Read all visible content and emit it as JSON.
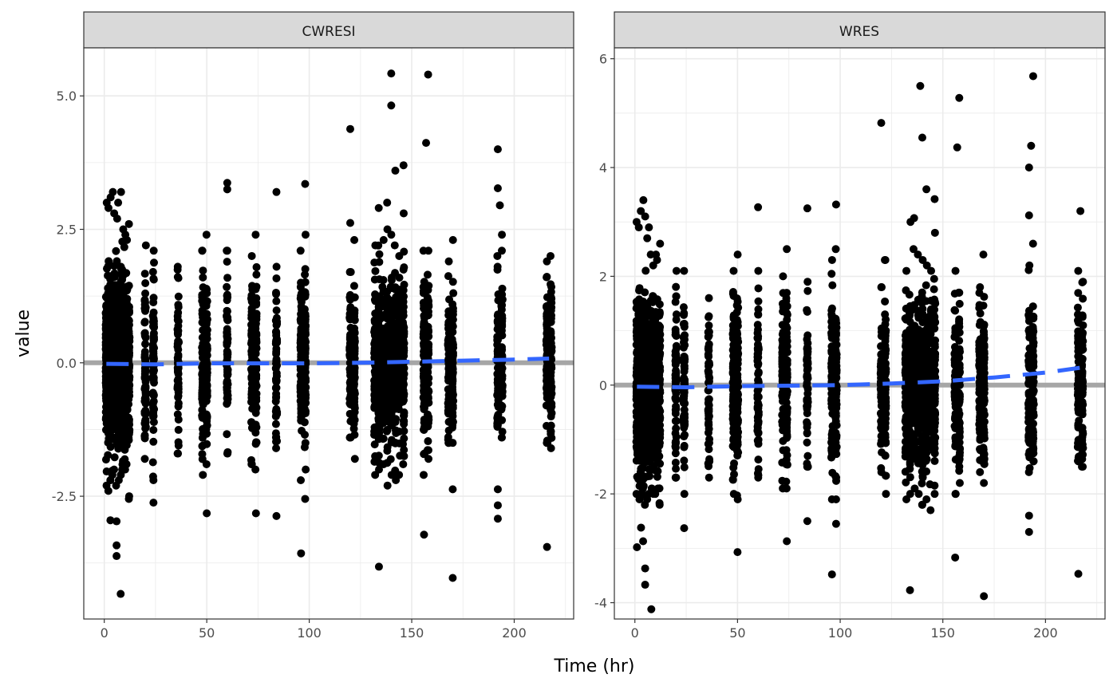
{
  "figure": {
    "xlabel": "Time (hr)",
    "ylabel": "value"
  },
  "colors": {
    "point": "#000000",
    "smooth": "#3366ff",
    "reference": "#a6a6a6",
    "strip": "#d9d9d9",
    "grid": "#ebebeb"
  },
  "chart_data": [
    {
      "type": "scatter",
      "panel": "CWRESI",
      "xlabel": "Time (hr)",
      "ylabel": "value",
      "xlim": [
        -10,
        229
      ],
      "ylim": [
        -4.8,
        5.9
      ],
      "x_ticks": [
        0,
        50,
        100,
        150,
        200
      ],
      "y_ticks": [
        -2.5,
        0.0,
        2.5,
        5.0
      ],
      "y_tick_labels": [
        "-2.5",
        "0.0",
        "2.5",
        "5.0"
      ],
      "grid": true,
      "reference_line": 0,
      "time_columns": [
        {
          "x": 1,
          "lo": -2.3,
          "hi": 3.0
        },
        {
          "x": 2,
          "lo": -2.4,
          "hi": 2.9
        },
        {
          "x": 3,
          "lo": -2.2,
          "hi": 3.1
        },
        {
          "x": 4,
          "lo": -2.1,
          "hi": 3.2
        },
        {
          "x": 5,
          "lo": -2.0,
          "hi": 2.8
        },
        {
          "x": 6,
          "lo": -2.3,
          "hi": 2.7
        },
        {
          "x": 7,
          "lo": -2.2,
          "hi": 3.0
        },
        {
          "x": 8,
          "lo": -2.1,
          "hi": 3.2
        },
        {
          "x": 9,
          "lo": -2.0,
          "hi": 2.5
        },
        {
          "x": 10,
          "lo": -2.0,
          "hi": 2.4
        },
        {
          "x": 11,
          "lo": -1.9,
          "hi": 2.3
        },
        {
          "x": 12,
          "lo": -2.5,
          "hi": 2.6
        },
        {
          "x": 20,
          "lo": -1.8,
          "hi": 2.2
        },
        {
          "x": 24,
          "lo": -2.2,
          "hi": 2.1
        },
        {
          "x": 36,
          "lo": -1.7,
          "hi": 1.8
        },
        {
          "x": 48,
          "lo": -2.1,
          "hi": 2.1
        },
        {
          "x": 50,
          "lo": -1.9,
          "hi": 2.4
        },
        {
          "x": 60,
          "lo": -1.7,
          "hi": 2.1
        },
        {
          "x": 72,
          "lo": -1.9,
          "hi": 2.0
        },
        {
          "x": 74,
          "lo": -2.0,
          "hi": 2.4
        },
        {
          "x": 84,
          "lo": -1.6,
          "hi": 1.8
        },
        {
          "x": 96,
          "lo": -2.2,
          "hi": 2.1
        },
        {
          "x": 98,
          "lo": -2.0,
          "hi": 2.4
        },
        {
          "x": 120,
          "lo": -1.4,
          "hi": 1.7
        },
        {
          "x": 122,
          "lo": -1.8,
          "hi": 2.3
        },
        {
          "x": 132,
          "lo": -2.1,
          "hi": 2.2
        },
        {
          "x": 134,
          "lo": -2.0,
          "hi": 2.9
        },
        {
          "x": 136,
          "lo": -1.9,
          "hi": 2.3
        },
        {
          "x": 138,
          "lo": -2.3,
          "hi": 2.5
        },
        {
          "x": 140,
          "lo": -2.1,
          "hi": 2.4
        },
        {
          "x": 142,
          "lo": -2.2,
          "hi": 2.2
        },
        {
          "x": 144,
          "lo": -2.1,
          "hi": 2.0
        },
        {
          "x": 146,
          "lo": -1.9,
          "hi": 2.8
        },
        {
          "x": 156,
          "lo": -2.1,
          "hi": 2.1
        },
        {
          "x": 158,
          "lo": -1.8,
          "hi": 2.1
        },
        {
          "x": 168,
          "lo": -1.5,
          "hi": 1.9
        },
        {
          "x": 170,
          "lo": -1.5,
          "hi": 2.3
        },
        {
          "x": 192,
          "lo": -1.2,
          "hi": 2.0
        },
        {
          "x": 194,
          "lo": -1.4,
          "hi": 2.1
        },
        {
          "x": 216,
          "lo": -1.5,
          "hi": 1.9
        },
        {
          "x": 218,
          "lo": -1.6,
          "hi": 2.0
        }
      ],
      "outliers": [
        [
          3,
          -2.95
        ],
        [
          6,
          -2.97
        ],
        [
          6,
          -3.42
        ],
        [
          6,
          -3.62
        ],
        [
          8,
          -4.33
        ],
        [
          12,
          -2.55
        ],
        [
          24,
          -2.62
        ],
        [
          50,
          -2.82
        ],
        [
          60,
          3.37
        ],
        [
          60,
          3.25
        ],
        [
          74,
          -2.82
        ],
        [
          84,
          3.2
        ],
        [
          84,
          -2.87
        ],
        [
          96,
          -3.57
        ],
        [
          98,
          3.35
        ],
        [
          98,
          -2.55
        ],
        [
          120,
          4.38
        ],
        [
          120,
          2.62
        ],
        [
          134,
          -3.82
        ],
        [
          138,
          3.0
        ],
        [
          140,
          5.42
        ],
        [
          140,
          4.82
        ],
        [
          142,
          3.6
        ],
        [
          146,
          3.7
        ],
        [
          156,
          -3.22
        ],
        [
          157,
          4.12
        ],
        [
          158,
          5.4
        ],
        [
          170,
          -2.37
        ],
        [
          170,
          -4.03
        ],
        [
          192,
          4.0
        ],
        [
          192,
          3.27
        ],
        [
          193,
          2.95
        ],
        [
          194,
          2.4
        ],
        [
          192,
          -2.67
        ],
        [
          192,
          -2.92
        ],
        [
          192,
          -2.37
        ],
        [
          216,
          -3.45
        ]
      ],
      "smooth": {
        "name": "",
        "x": [
          1,
          25,
          50,
          75,
          100,
          125,
          150,
          175,
          200,
          217
        ],
        "y": [
          -0.02,
          -0.03,
          -0.01,
          -0.01,
          -0.01,
          0.0,
          0.02,
          0.04,
          0.06,
          0.08
        ]
      }
    },
    {
      "type": "scatter",
      "panel": "WRES",
      "xlabel": "Time (hr)",
      "ylabel": "value",
      "xlim": [
        -10,
        229
      ],
      "ylim": [
        -4.3,
        6.2
      ],
      "x_ticks": [
        0,
        50,
        100,
        150,
        200
      ],
      "y_ticks": [
        -4,
        -2,
        0,
        2,
        4,
        6
      ],
      "y_tick_labels": [
        "-4",
        "-2",
        "0",
        "2",
        "4",
        "6"
      ],
      "grid": true,
      "reference_line": 0,
      "time_columns": [
        {
          "x": 1,
          "lo": -2.0,
          "hi": 3.0
        },
        {
          "x": 2,
          "lo": -2.1,
          "hi": 2.9
        },
        {
          "x": 3,
          "lo": -2.0,
          "hi": 3.2
        },
        {
          "x": 4,
          "lo": -1.9,
          "hi": 3.4
        },
        {
          "x": 5,
          "lo": -2.2,
          "hi": 3.1
        },
        {
          "x": 6,
          "lo": -2.1,
          "hi": 2.7
        },
        {
          "x": 7,
          "lo": -2.0,
          "hi": 2.9
        },
        {
          "x": 8,
          "lo": -1.9,
          "hi": 2.4
        },
        {
          "x": 9,
          "lo": -2.0,
          "hi": 2.2
        },
        {
          "x": 10,
          "lo": -2.0,
          "hi": 2.4
        },
        {
          "x": 11,
          "lo": -1.9,
          "hi": 2.3
        },
        {
          "x": 12,
          "lo": -2.2,
          "hi": 2.6
        },
        {
          "x": 20,
          "lo": -1.7,
          "hi": 2.1
        },
        {
          "x": 24,
          "lo": -2.0,
          "hi": 2.1
        },
        {
          "x": 36,
          "lo": -1.7,
          "hi": 1.6
        },
        {
          "x": 48,
          "lo": -2.0,
          "hi": 2.1
        },
        {
          "x": 50,
          "lo": -2.1,
          "hi": 2.4
        },
        {
          "x": 60,
          "lo": -1.7,
          "hi": 2.1
        },
        {
          "x": 72,
          "lo": -1.9,
          "hi": 2.0
        },
        {
          "x": 74,
          "lo": -1.9,
          "hi": 2.5
        },
        {
          "x": 84,
          "lo": -1.5,
          "hi": 1.9
        },
        {
          "x": 96,
          "lo": -2.1,
          "hi": 2.3
        },
        {
          "x": 98,
          "lo": -2.1,
          "hi": 2.5
        },
        {
          "x": 120,
          "lo": -1.6,
          "hi": 1.8
        },
        {
          "x": 122,
          "lo": -2.0,
          "hi": 2.3
        },
        {
          "x": 132,
          "lo": -2.1,
          "hi": 2.1
        },
        {
          "x": 134,
          "lo": -2.0,
          "hi": 3.0
        },
        {
          "x": 136,
          "lo": -1.9,
          "hi": 2.5
        },
        {
          "x": 138,
          "lo": -2.0,
          "hi": 2.4
        },
        {
          "x": 140,
          "lo": -2.2,
          "hi": 2.3
        },
        {
          "x": 142,
          "lo": -2.1,
          "hi": 2.2
        },
        {
          "x": 144,
          "lo": -2.3,
          "hi": 2.1
        },
        {
          "x": 146,
          "lo": -2.0,
          "hi": 2.8
        },
        {
          "x": 156,
          "lo": -2.0,
          "hi": 2.1
        },
        {
          "x": 158,
          "lo": -1.8,
          "hi": 1.7
        },
        {
          "x": 168,
          "lo": -1.6,
          "hi": 1.8
        },
        {
          "x": 170,
          "lo": -1.8,
          "hi": 2.4
        },
        {
          "x": 192,
          "lo": -1.6,
          "hi": 2.2
        },
        {
          "x": 194,
          "lo": -1.4,
          "hi": 2.6
        },
        {
          "x": 216,
          "lo": -1.4,
          "hi": 2.1
        },
        {
          "x": 218,
          "lo": -1.5,
          "hi": 1.9
        }
      ],
      "outliers": [
        [
          1,
          -2.98
        ],
        [
          3,
          -2.62
        ],
        [
          4,
          -2.87
        ],
        [
          5,
          -3.37
        ],
        [
          5,
          -3.67
        ],
        [
          8,
          -4.12
        ],
        [
          12,
          -2.17
        ],
        [
          24,
          -2.63
        ],
        [
          50,
          -3.07
        ],
        [
          60,
          3.27
        ],
        [
          74,
          -2.87
        ],
        [
          84,
          3.25
        ],
        [
          84,
          -2.5
        ],
        [
          96,
          -3.48
        ],
        [
          98,
          3.32
        ],
        [
          98,
          -2.55
        ],
        [
          120,
          4.82
        ],
        [
          122,
          2.3
        ],
        [
          134,
          -3.77
        ],
        [
          136,
          3.07
        ],
        [
          139,
          5.5
        ],
        [
          140,
          4.55
        ],
        [
          142,
          3.6
        ],
        [
          146,
          3.42
        ],
        [
          156,
          -3.17
        ],
        [
          157,
          4.37
        ],
        [
          158,
          5.28
        ],
        [
          170,
          -3.88
        ],
        [
          192,
          4.0
        ],
        [
          193,
          4.4
        ],
        [
          194,
          5.68
        ],
        [
          192,
          3.12
        ],
        [
          192,
          -2.4
        ],
        [
          192,
          -2.7
        ],
        [
          216,
          -3.47
        ],
        [
          217,
          3.2
        ]
      ],
      "smooth": {
        "name": "",
        "x": [
          1,
          25,
          50,
          75,
          100,
          125,
          150,
          175,
          200,
          217
        ],
        "y": [
          -0.03,
          -0.04,
          -0.02,
          -0.01,
          0.0,
          0.03,
          0.07,
          0.14,
          0.23,
          0.32
        ]
      }
    }
  ]
}
